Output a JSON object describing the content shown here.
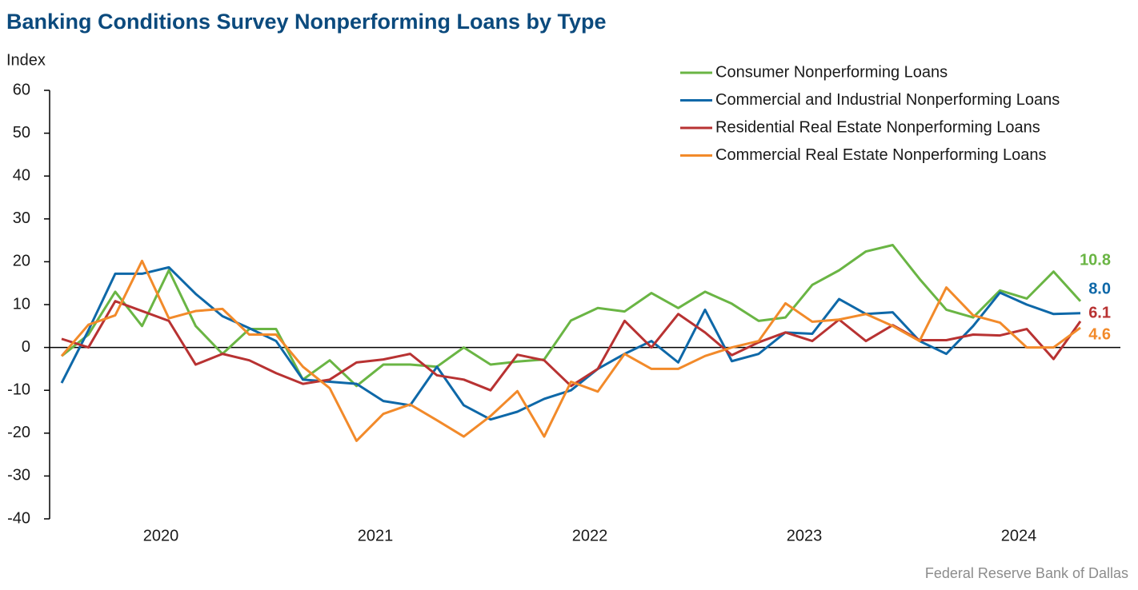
{
  "chart_data": {
    "type": "line",
    "title": "Banking Conditions Survey Nonperforming Loans by Type",
    "y_label": "Index",
    "source": "Federal Reserve Bank of Dallas",
    "categories": [
      null,
      null,
      null,
      null,
      "2020",
      null,
      null,
      null,
      null,
      null,
      null,
      null,
      "2021",
      null,
      null,
      null,
      null,
      null,
      null,
      null,
      "2022",
      null,
      null,
      null,
      null,
      null,
      null,
      null,
      "2023",
      null,
      null,
      null,
      null,
      null,
      null,
      null,
      "2024",
      null,
      null
    ],
    "ylim": [
      -40,
      60
    ],
    "yticks": [
      -40,
      -30,
      -20,
      -10,
      0,
      10,
      20,
      30,
      40,
      50,
      60
    ],
    "legend": "upper right",
    "series": [
      {
        "name": "Consumer Nonperforming Loans",
        "color": "#6ab544",
        "values": [
          -2,
          3,
          13,
          5,
          18,
          5,
          -1.5,
          4.3,
          4.3,
          -7.5,
          -3,
          -9,
          -4,
          -4,
          -4.5,
          0,
          -4,
          -3.3,
          -2.8,
          6.3,
          9.2,
          8.4,
          12.7,
          9.2,
          13,
          10.2,
          6.2,
          7,
          14.6,
          18,
          22.4,
          23.9,
          16,
          8.8,
          7,
          13.3,
          11.4,
          17.7,
          10.8
        ],
        "value_labels": [
          null,
          null,
          null,
          null,
          null,
          null,
          null,
          null,
          null,
          null,
          null,
          null,
          null,
          null,
          null,
          null,
          null,
          null,
          null,
          null,
          null,
          null,
          null,
          null,
          null,
          null,
          null,
          null,
          null,
          null,
          null,
          null,
          null,
          null,
          null,
          null,
          null,
          null,
          "10.8"
        ]
      },
      {
        "name": "Commercial and Industrial Nonperforming Loans",
        "color": "#0e68a8",
        "values": [
          -8.3,
          4,
          17.2,
          17.2,
          18.7,
          12.5,
          7.3,
          4.5,
          1.5,
          -7.5,
          -8,
          -8.5,
          -12.5,
          -13.5,
          -4.5,
          -13.5,
          -16.8,
          -15,
          -12,
          -10,
          -5,
          -1.5,
          1.5,
          -3.5,
          8.8,
          -3.2,
          -1.5,
          3.5,
          3.2,
          11.3,
          7.8,
          8.2,
          1.5,
          -1.5,
          5,
          12.8,
          10,
          7.8,
          8.0
        ],
        "value_labels": [
          null,
          null,
          null,
          null,
          null,
          null,
          null,
          null,
          null,
          null,
          null,
          null,
          null,
          null,
          null,
          null,
          null,
          null,
          null,
          null,
          null,
          null,
          null,
          null,
          null,
          null,
          null,
          null,
          null,
          null,
          null,
          null,
          null,
          null,
          null,
          null,
          null,
          null,
          "8.0"
        ]
      },
      {
        "name": "Residential Real Estate Nonperforming Loans",
        "color": "#b83232",
        "values": [
          2,
          0,
          10.8,
          8.5,
          6.2,
          -4,
          -1.5,
          -3,
          -6,
          -8.5,
          -7.5,
          -3.5,
          -2.8,
          -1.5,
          -6.5,
          -7.5,
          -10,
          -1.7,
          -3,
          -9,
          -5,
          6.2,
          0,
          7.8,
          3.5,
          -1.8,
          1.2,
          3.5,
          1.5,
          6.5,
          1.5,
          5.2,
          1.7,
          1.7,
          3,
          2.8,
          4.3,
          -2.7,
          6.1
        ],
        "value_labels": [
          null,
          null,
          null,
          null,
          null,
          null,
          null,
          null,
          null,
          null,
          null,
          null,
          null,
          null,
          null,
          null,
          null,
          null,
          null,
          null,
          null,
          null,
          null,
          null,
          null,
          null,
          null,
          null,
          null,
          null,
          null,
          null,
          null,
          null,
          null,
          null,
          null,
          null,
          "6.1"
        ]
      },
      {
        "name": "Commercial Real Estate Nonperforming Loans",
        "color": "#f28a2a",
        "values": [
          -2,
          5.3,
          7.5,
          20.2,
          6.8,
          8.5,
          9,
          3,
          3,
          -4.5,
          -9.5,
          -21.8,
          -15.5,
          -13.3,
          -17,
          -20.8,
          -16,
          -10.2,
          -20.8,
          -8,
          -10.3,
          -1.5,
          -5,
          -5,
          -2,
          0,
          1.5,
          10.3,
          6,
          6.5,
          7.8,
          5,
          1.5,
          14,
          7.5,
          5.8,
          0,
          0,
          4.6
        ],
        "value_labels": [
          null,
          null,
          null,
          null,
          null,
          null,
          null,
          null,
          null,
          null,
          null,
          null,
          null,
          null,
          null,
          null,
          null,
          null,
          null,
          null,
          null,
          null,
          null,
          null,
          null,
          null,
          null,
          null,
          null,
          null,
          null,
          null,
          null,
          null,
          null,
          null,
          null,
          null,
          "4.6"
        ]
      }
    ]
  }
}
